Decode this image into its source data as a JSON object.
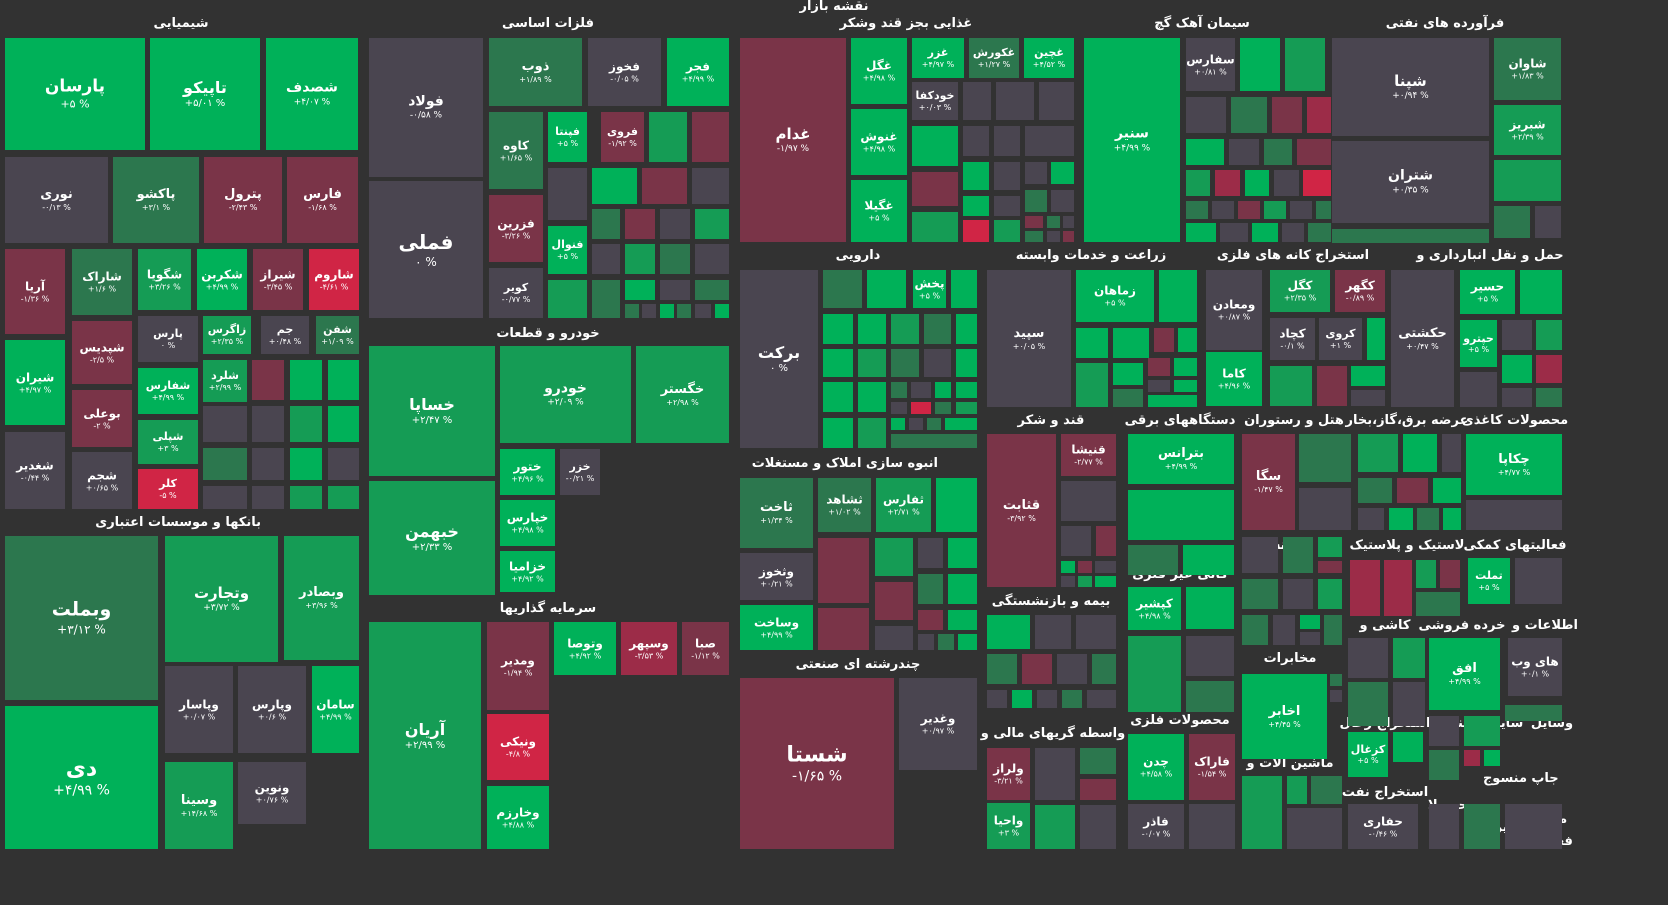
{
  "title": "نقشه بازار",
  "palette": {
    "g3": "#00b159",
    "g2": "#159c55",
    "g1": "#2c774e",
    "n": "#4a4550",
    "r1": "#7a3448",
    "r2": "#9c2c48",
    "r3": "#d02545"
  },
  "sectors": [
    "شیمیایی",
    "فلزات اساسی",
    "غذایی بجز قند وشکر",
    "سیمان آهک گچ",
    "فرآورده های نفتی",
    "بانکها و موسسات اعتباری",
    "خودرو و قطعات",
    "سرمایه گذاریها",
    "دارویی",
    "زراعت و خدمات وابسته",
    "استخراج کانه های فلزی",
    "حمل و نقل انبارداری و",
    "انبوه سازی املاک و مستغلات",
    "قند و شکر",
    "دستگاههای برقی",
    "هتل و رستوران",
    "عرضه برق،گاز،بخار",
    "محصولات کاغذی",
    "چندرشته ای صنعتی",
    "بیمه و بازنشستگی",
    "کانی غیر فلزی",
    "رایانه",
    "لاستیک و پلاستیک",
    "فعالیتهای کمکی",
    "واسطه گریهای مالی و",
    "محصولات فلزی",
    "مخابرات",
    "خرده فروشی",
    "اطلاعات و",
    "کاشی و",
    "ماشین آلات و",
    "فنی و",
    "استخراج زغال",
    "سایر",
    "وسایل",
    "استخراج نفت",
    "محصولا",
    "جاپ",
    "منسوج",
    "سایر",
    "فعالیتها",
    "مه پیما"
  ],
  "stocks": [
    {
      "s": "پارسان",
      "c": "+۵ %",
      "col": "g3"
    },
    {
      "s": "تاپیکو",
      "c": "+۵/۰۱ %",
      "col": "g3"
    },
    {
      "s": "شصدف",
      "c": "+۴/۰۷ %",
      "col": "g3"
    },
    {
      "s": "نوری",
      "c": "-۰/۱۳ %",
      "col": "n"
    },
    {
      "s": "پاکشو",
      "c": "+۳/۱ %",
      "col": "g1"
    },
    {
      "s": "پترول",
      "c": "-۲/۴۳ %",
      "col": "r1"
    },
    {
      "s": "فارس",
      "c": "-۱/۶۸ %",
      "col": "r1"
    },
    {
      "s": "آریا",
      "c": "-۱/۳۶ %",
      "col": "r1"
    },
    {
      "s": "شاراک",
      "c": "+۱/۶ %",
      "col": "g1"
    },
    {
      "s": "شگویا",
      "c": "+۳/۲۶ %",
      "col": "g2"
    },
    {
      "s": "شکربن",
      "c": "+۴/۹۹ %",
      "col": "g3"
    },
    {
      "s": "شیراز",
      "c": "-۳/۴۵ %",
      "col": "r1"
    },
    {
      "s": "شاروم",
      "c": "-۴/۶۱ %",
      "col": "r3"
    },
    {
      "s": "شیران",
      "c": "+۴/۹۷ %",
      "col": "g3"
    },
    {
      "s": "شپدیس",
      "c": "-۲/۵ %",
      "col": "r1"
    },
    {
      "s": "پارس",
      "c": "۰ %",
      "col": "n"
    },
    {
      "s": "زاگرس",
      "c": "+۲/۳۵ %",
      "col": "g2"
    },
    {
      "s": "جم",
      "c": "+۰/۴۸ %",
      "col": "n"
    },
    {
      "s": "شفن",
      "c": "+۱/۰۹ %",
      "col": "g1"
    },
    {
      "s": "بوعلی",
      "c": "-۲ %",
      "col": "r1"
    },
    {
      "s": "شفارس",
      "c": "+۴/۹۹ %",
      "col": "g3"
    },
    {
      "s": "شلرد",
      "c": "+۲/۹۹ %",
      "col": "g2"
    },
    {
      "s": "شپلی",
      "c": "+۳ %",
      "col": "g2"
    },
    {
      "s": "شغدیر",
      "c": "-۰/۴۴ %",
      "col": "n"
    },
    {
      "s": "شجم",
      "c": "+۰/۶۵ %",
      "col": "n"
    },
    {
      "s": "کلر",
      "c": "-۵ %",
      "col": "r3"
    },
    {
      "s": "فولاد",
      "c": "-۰/۵۸ %",
      "col": "n"
    },
    {
      "s": "ذوب",
      "c": "+۱/۸۹ %",
      "col": "g1"
    },
    {
      "s": "فخوز",
      "c": "-۰/۰۵ %",
      "col": "n"
    },
    {
      "s": "فجر",
      "c": "+۴/۹۹ %",
      "col": "g3"
    },
    {
      "s": "کاوه",
      "c": "+۱/۶۵ %",
      "col": "g1"
    },
    {
      "s": "فپنتا",
      "c": "+۵ %",
      "col": "g3"
    },
    {
      "s": "فروی",
      "c": "-۱/۹۲ %",
      "col": "r1"
    },
    {
      "s": "فملی",
      "c": "۰ %",
      "col": "n"
    },
    {
      "s": "فزرین",
      "c": "-۳/۲۶ %",
      "col": "r1"
    },
    {
      "s": "فنوال",
      "c": "+۵ %",
      "col": "g3"
    },
    {
      "s": "کویر",
      "c": "-۰/۷۷ %",
      "col": "n"
    },
    {
      "s": "غگل",
      "c": "+۴/۹۸ %",
      "col": "g3"
    },
    {
      "s": "غزر",
      "c": "+۴/۹۷ %",
      "col": "g3"
    },
    {
      "s": "غکورش",
      "c": "+۱/۲۷ %",
      "col": "g1"
    },
    {
      "s": "غچین",
      "c": "+۴/۵۲ %",
      "col": "g3"
    },
    {
      "s": "غدام",
      "c": "-۱/۹۷ %",
      "col": "r1"
    },
    {
      "s": "خودکفا",
      "c": "+۰/۰۳ %",
      "col": "n"
    },
    {
      "s": "غنوش",
      "c": "+۴/۹۸ %",
      "col": "g3"
    },
    {
      "s": "غگیلا",
      "c": "+۵ %",
      "col": "g3"
    },
    {
      "s": "سنیر",
      "c": "+۴/۹۹ %",
      "col": "g3"
    },
    {
      "s": "سفارس",
      "c": "+۰/۸۱ %",
      "col": "n"
    },
    {
      "s": "شاوان",
      "c": "+۱/۸۳ %",
      "col": "g1"
    },
    {
      "s": "شپنا",
      "c": "+۰/۹۴ %",
      "col": "n"
    },
    {
      "s": "شبریز",
      "c": "+۲/۳۹ %",
      "col": "g2"
    },
    {
      "s": "شتران",
      "c": "+۰/۳۵ %",
      "col": "n"
    },
    {
      "s": "وبملت",
      "c": "+۳/۱۲ %",
      "col": "g1"
    },
    {
      "s": "وتجارت",
      "c": "+۳/۷۲ %",
      "col": "g2"
    },
    {
      "s": "وبصادر",
      "c": "+۳/۹۶ %",
      "col": "g2"
    },
    {
      "s": "وپاسار",
      "c": "+۰/۰۷ %",
      "col": "n"
    },
    {
      "s": "وپارس",
      "c": "+۰/۶ %",
      "col": "n"
    },
    {
      "s": "سامان",
      "c": "+۴/۹۹ %",
      "col": "g3"
    },
    {
      "s": "دی",
      "c": "+۴/۹۹ %",
      "col": "g3"
    },
    {
      "s": "وسینا",
      "c": "+۱۴/۶۸ %",
      "col": "g2"
    },
    {
      "s": "ونوین",
      "c": "+۰/۷۶ %",
      "col": "n"
    },
    {
      "s": "خساپا",
      "c": "+۲/۴۷ %",
      "col": "g2"
    },
    {
      "s": "خودرو",
      "c": "+۲/۰۹ %",
      "col": "g2"
    },
    {
      "s": "خگستر",
      "c": "+۲/۹۸ %",
      "col": "g2"
    },
    {
      "s": "ختور",
      "c": "+۴/۹۶ %",
      "col": "g3"
    },
    {
      "s": "خزر",
      "c": "-۰/۲۱ %",
      "col": "n"
    },
    {
      "s": "خپارس",
      "c": "+۴/۹۸ %",
      "col": "g3"
    },
    {
      "s": "خزامیا",
      "c": "+۴/۹۲ %",
      "col": "g3"
    },
    {
      "s": "خبهمن",
      "c": "+۲/۳۳ %",
      "col": "g2"
    },
    {
      "s": "آریان",
      "c": "+۲/۹۹ %",
      "col": "g2"
    },
    {
      "s": "ومدیر",
      "c": "-۱/۹۴ %",
      "col": "r1"
    },
    {
      "s": "وتوصا",
      "c": "+۴/۹۲ %",
      "col": "g3"
    },
    {
      "s": "وسپهر",
      "c": "-۳/۵۳ %",
      "col": "r2"
    },
    {
      "s": "صبا",
      "c": "-۱/۱۲ %",
      "col": "r1"
    },
    {
      "s": "ونیکی",
      "c": "-۴/۸ %",
      "col": "r3"
    },
    {
      "s": "وخارزم",
      "c": "+۴/۸۸ %",
      "col": "g3"
    },
    {
      "s": "برکت",
      "c": "۰ %",
      "col": "n"
    },
    {
      "s": "پخش",
      "c": "+۵ %",
      "col": "g3"
    },
    {
      "s": "زماهان",
      "c": "+۵ %",
      "col": "g3"
    },
    {
      "s": "سپید",
      "c": "+۰/۰۵ %",
      "col": "n"
    },
    {
      "s": "کگل",
      "c": "+۲/۳۵ %",
      "col": "g2"
    },
    {
      "s": "کگهر",
      "c": "-۰/۸۹ %",
      "col": "r1"
    },
    {
      "s": "ومعادن",
      "c": "+۰/۸۷ %",
      "col": "n"
    },
    {
      "s": "کچاد",
      "c": "-۰/۱ %",
      "col": "n"
    },
    {
      "s": "کروی",
      "c": "+۱ %",
      "col": "n"
    },
    {
      "s": "کاما",
      "c": "+۴/۹۶ %",
      "col": "g3"
    },
    {
      "s": "حسیر",
      "c": "+۵ %",
      "col": "g3"
    },
    {
      "s": "حکشتی",
      "c": "+۰/۴۷ %",
      "col": "n"
    },
    {
      "s": "حپترو",
      "c": "+۵ %",
      "col": "g3"
    },
    {
      "s": "ثاخت",
      "c": "+۱/۳۴ %",
      "col": "g1"
    },
    {
      "s": "ثشاهد",
      "c": "+۱/۰۲ %",
      "col": "g1"
    },
    {
      "s": "ثفارس",
      "c": "+۲/۷۱ %",
      "col": "g2"
    },
    {
      "s": "وثخوز",
      "c": "+۰/۲۱ %",
      "col": "n"
    },
    {
      "s": "وساخت",
      "c": "+۴/۹۹ %",
      "col": "g3"
    },
    {
      "s": "قنیشا",
      "c": "-۲/۷۷ %",
      "col": "r1"
    },
    {
      "s": "قثابت",
      "c": "-۳/۹۲ %",
      "col": "r1"
    },
    {
      "s": "بترانس",
      "c": "+۴/۹۹ %",
      "col": "g3"
    },
    {
      "s": "سگا",
      "c": "-۱/۴۷ %",
      "col": "r1"
    },
    {
      "s": "چکاپا",
      "c": "+۴/۷۷ %",
      "col": "g3"
    },
    {
      "s": "شستا",
      "c": "-۱/۶۵ %",
      "col": "r1"
    },
    {
      "s": "وغدیر",
      "c": "+۰/۹۷ %",
      "col": "n"
    },
    {
      "s": "کپشیر",
      "c": "+۴/۹۸ %",
      "col": "g3"
    },
    {
      "s": "تملت",
      "c": "+۵ %",
      "col": "g3"
    },
    {
      "s": "ولراز",
      "c": "-۳/۲۱ %",
      "col": "r1"
    },
    {
      "s": "واحیا",
      "c": "+۳ %",
      "col": "g2"
    },
    {
      "s": "چدن",
      "c": "+۴/۵۸ %",
      "col": "g3"
    },
    {
      "s": "فاراک",
      "c": "-۱/۵۴ %",
      "col": "r1"
    },
    {
      "s": "فاذر",
      "c": "-۰/۰۷ %",
      "col": "n"
    },
    {
      "s": "اخابر",
      "c": "+۴/۴۵ %",
      "col": "g3"
    },
    {
      "s": "افق",
      "c": "+۴/۹۹ %",
      "col": "g3"
    },
    {
      "s": "های وب",
      "c": "+۰/۱ %",
      "col": "n"
    },
    {
      "s": "کزغال",
      "c": "+۵ %",
      "col": "g3"
    },
    {
      "s": "حفاری",
      "c": "-۰/۴۶ %",
      "col": "n"
    }
  ]
}
